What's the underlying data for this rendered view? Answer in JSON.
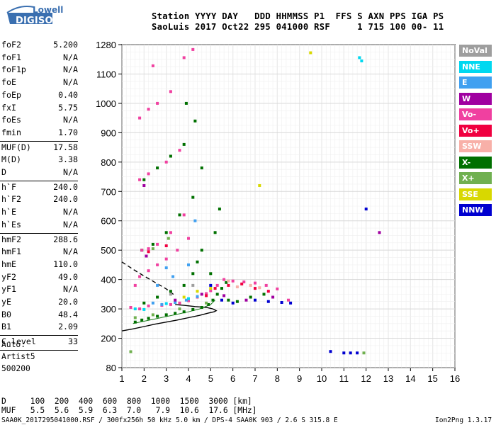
{
  "logo": {
    "line1": "Lowell",
    "line2": "DIGISONDE"
  },
  "header": {
    "line1": "Station YYYY DAY   DDD HHMMSS P1  FFS S AXN PPS IGA PS",
    "line2": "SaoLuis 2017 Oct22 295 041000 RSF     1 715 100 00- 11"
  },
  "params": [
    {
      "label": "foF2",
      "value": "5.200"
    },
    {
      "label": "foF1",
      "value": "N/A"
    },
    {
      "label": "foF1p",
      "value": "N/A"
    },
    {
      "label": "foE",
      "value": "N/A"
    },
    {
      "label": "foEp",
      "value": "0.40"
    },
    {
      "label": "fxI",
      "value": "5.75"
    },
    {
      "label": "foEs",
      "value": "N/A"
    },
    {
      "label": "fmin",
      "value": "1.70"
    },
    {
      "label": "MUF(D)",
      "value": "17.58"
    },
    {
      "label": "M(D)",
      "value": "3.38"
    },
    {
      "label": "D",
      "value": "N/A"
    },
    {
      "label": "h`F",
      "value": "240.0"
    },
    {
      "label": "h`F2",
      "value": "240.0"
    },
    {
      "label": "h`E",
      "value": "N/A"
    },
    {
      "label": "h`Es",
      "value": "N/A"
    },
    {
      "label": "hmF2",
      "value": "288.6"
    },
    {
      "label": "hmF1",
      "value": "N/A"
    },
    {
      "label": "hmE",
      "value": "110.0"
    },
    {
      "label": "yF2",
      "value": "49.0"
    },
    {
      "label": "yF1",
      "value": "N/A"
    },
    {
      "label": "yE",
      "value": "20.0"
    },
    {
      "label": "B0",
      "value": "48.4"
    },
    {
      "label": "B1",
      "value": "2.09"
    },
    {
      "label": "C-level",
      "value": "33"
    }
  ],
  "autoscaling": {
    "line1": "Auto:",
    "line2": "Artist5",
    "line3": "500200"
  },
  "legend": [
    {
      "label": "NoVal",
      "color": "#9e9e9e"
    },
    {
      "label": "NNE",
      "color": "#00d8f0"
    },
    {
      "label": "E",
      "color": "#40a0f0"
    },
    {
      "label": "W",
      "color": "#a000a0"
    },
    {
      "label": "Vo-",
      "color": "#f040a0"
    },
    {
      "label": "Vo+",
      "color": "#f00040"
    },
    {
      "label": "SSW",
      "color": "#f8b0a8"
    },
    {
      "label": "X-",
      "color": "#007000"
    },
    {
      "label": "X+",
      "color": "#70b050"
    },
    {
      "label": "SSE",
      "color": "#d8d800"
    },
    {
      "label": "NNW",
      "color": "#0000d0"
    }
  ],
  "muf_table": {
    "d_line": "D     100  200  400  600  800  1000  1500  3000 [km]",
    "muf_line": "MUF   5.5  5.6  5.9  6.3  7.0   7.9  10.6  17.6 [MHz]"
  },
  "footer": {
    "left": "SAA0K_2017295041000.RSF / 300fx256h 50 kHz 5.0 km / DPS-4 SAA0K 903 / 2.6 S 315.8 E",
    "right": "Ion2Png 1.3.17"
  },
  "chart_data": {
    "type": "scatter",
    "xlabel": "",
    "ylabel": "",
    "x_ticks": [
      1,
      2,
      3,
      4,
      5,
      6,
      7,
      8,
      9,
      10,
      11,
      12,
      13,
      14,
      15,
      16
    ],
    "y_ticks": [
      80,
      200,
      300,
      400,
      500,
      600,
      700,
      800,
      900,
      1000,
      1100,
      1280
    ],
    "xlim": [
      1,
      16
    ],
    "ylim": [
      80,
      1280
    ],
    "grid": true,
    "series": [
      {
        "name": "X-",
        "color": "#007000",
        "points": [
          [
            1.6,
            255
          ],
          [
            1.9,
            262
          ],
          [
            2.2,
            268
          ],
          [
            2.6,
            275
          ],
          [
            3.0,
            280
          ],
          [
            3.4,
            285
          ],
          [
            3.8,
            290
          ],
          [
            4.2,
            298
          ],
          [
            4.6,
            305
          ],
          [
            4.9,
            315
          ],
          [
            5.1,
            330
          ],
          [
            5.3,
            350
          ],
          [
            5.5,
            370
          ],
          [
            5.7,
            390
          ],
          [
            2.0,
            320
          ],
          [
            2.6,
            340
          ],
          [
            3.2,
            360
          ],
          [
            3.8,
            380
          ],
          [
            4.2,
            420
          ],
          [
            4.4,
            460
          ],
          [
            4.6,
            500
          ],
          [
            5.2,
            560
          ],
          [
            5.4,
            640
          ],
          [
            1.9,
            500
          ],
          [
            2.4,
            520
          ],
          [
            3.0,
            560
          ],
          [
            3.6,
            620
          ],
          [
            4.2,
            680
          ],
          [
            4.6,
            780
          ],
          [
            2.0,
            740
          ],
          [
            2.6,
            780
          ],
          [
            3.2,
            820
          ],
          [
            3.8,
            860
          ],
          [
            4.3,
            940
          ],
          [
            3.9,
            1000
          ],
          [
            5.0,
            420
          ],
          [
            5.8,
            330
          ],
          [
            6.2,
            325
          ],
          [
            6.8,
            340
          ],
          [
            7.4,
            350
          ]
        ]
      },
      {
        "name": "Vo-",
        "color": "#f040a0",
        "points": [
          [
            1.4,
            305
          ],
          [
            1.8,
            300
          ],
          [
            2.2,
            310
          ],
          [
            2.8,
            312
          ],
          [
            3.2,
            315
          ],
          [
            3.6,
            320
          ],
          [
            4.0,
            328
          ],
          [
            4.4,
            340
          ],
          [
            4.8,
            352
          ],
          [
            5.0,
            362
          ],
          [
            5.3,
            380
          ],
          [
            5.6,
            400
          ],
          [
            6.0,
            395
          ],
          [
            6.5,
            392
          ],
          [
            7.0,
            388
          ],
          [
            7.5,
            380
          ],
          [
            8.0,
            368
          ],
          [
            8.5,
            330
          ],
          [
            1.8,
            410
          ],
          [
            2.2,
            430
          ],
          [
            2.6,
            450
          ],
          [
            3.0,
            470
          ],
          [
            3.5,
            500
          ],
          [
            4.0,
            540
          ],
          [
            1.6,
            380
          ],
          [
            1.9,
            500
          ],
          [
            2.2,
            505
          ],
          [
            2.6,
            520
          ],
          [
            3.2,
            560
          ],
          [
            3.8,
            620
          ],
          [
            1.8,
            740
          ],
          [
            2.2,
            760
          ],
          [
            3.0,
            800
          ],
          [
            3.6,
            840
          ],
          [
            1.8,
            950
          ],
          [
            2.2,
            980
          ],
          [
            2.6,
            1000
          ],
          [
            3.2,
            1040
          ],
          [
            2.4,
            1150
          ],
          [
            3.8,
            1200
          ],
          [
            4.2,
            1250
          ]
        ]
      },
      {
        "name": "Vo+",
        "color": "#f00040",
        "points": [
          [
            4.8,
            345
          ],
          [
            5.2,
            370
          ],
          [
            5.8,
            380
          ],
          [
            6.4,
            385
          ],
          [
            7.0,
            370
          ],
          [
            7.6,
            360
          ],
          [
            2.2,
            495
          ],
          [
            3.0,
            515
          ]
        ]
      },
      {
        "name": "NNW",
        "color": "#0000d0",
        "points": [
          [
            5.5,
            330
          ],
          [
            6.0,
            320
          ],
          [
            7.0,
            330
          ],
          [
            7.6,
            325
          ],
          [
            8.2,
            322
          ],
          [
            8.6,
            320
          ],
          [
            11.0,
            140
          ],
          [
            11.3,
            140
          ],
          [
            11.6,
            140
          ],
          [
            12.0,
            640
          ],
          [
            10.4,
            146
          ],
          [
            5.0,
            380
          ]
        ]
      },
      {
        "name": "E",
        "color": "#40a0f0",
        "points": [
          [
            2.4,
            320
          ],
          [
            2.8,
            315
          ],
          [
            3.4,
            322
          ],
          [
            3.9,
            330
          ],
          [
            4.4,
            342
          ],
          [
            2.6,
            380
          ],
          [
            3.3,
            410
          ],
          [
            4.0,
            450
          ],
          [
            3.0,
            440
          ],
          [
            4.3,
            600
          ]
        ]
      },
      {
        "name": "NNE",
        "color": "#00d8f0",
        "points": [
          [
            1.6,
            300
          ],
          [
            2.0,
            298
          ],
          [
            3.0,
            318
          ],
          [
            4.0,
            335
          ],
          [
            11.7,
            1200
          ],
          [
            11.8,
            1180
          ]
        ]
      },
      {
        "name": "W",
        "color": "#a000a0",
        "points": [
          [
            3.4,
            330
          ],
          [
            4.6,
            350
          ],
          [
            5.6,
            345
          ],
          [
            6.6,
            330
          ],
          [
            7.8,
            340
          ],
          [
            2.1,
            480
          ],
          [
            2.0,
            720
          ],
          [
            12.6,
            560
          ]
        ]
      },
      {
        "name": "X+",
        "color": "#70b050",
        "points": [
          [
            1.6,
            270
          ],
          [
            2.4,
            280
          ],
          [
            3.6,
            300
          ],
          [
            4.8,
            320
          ],
          [
            1.4,
            145
          ],
          [
            11.9,
            140
          ],
          [
            2.4,
            505
          ],
          [
            3.1,
            540
          ]
        ]
      },
      {
        "name": "SSE",
        "color": "#d8d800",
        "points": [
          [
            3.8,
            340
          ],
          [
            4.4,
            360
          ],
          [
            5.0,
            370
          ],
          [
            9.5,
            1230
          ],
          [
            7.2,
            720
          ]
        ]
      },
      {
        "name": "SSW",
        "color": "#f8b0a8",
        "points": [
          [
            6.2,
            375
          ],
          [
            6.8,
            380
          ],
          [
            7.2,
            372
          ],
          [
            5.8,
            395
          ]
        ]
      },
      {
        "name": "NoVal",
        "color": "#9e9e9e",
        "points": [
          [
            3.2,
            350
          ],
          [
            4.2,
            380
          ]
        ]
      }
    ],
    "lines": [
      {
        "name": "profile",
        "style": "solid",
        "points": [
          [
            1.0,
            225
          ],
          [
            1.5,
            232
          ],
          [
            2.0,
            240
          ],
          [
            2.5,
            248
          ],
          [
            3.0,
            255
          ],
          [
            3.5,
            262
          ],
          [
            4.0,
            270
          ],
          [
            4.5,
            278
          ],
          [
            4.9,
            286
          ],
          [
            5.15,
            290
          ],
          [
            5.25,
            294
          ],
          [
            5.1,
            300
          ],
          [
            4.8,
            305
          ],
          [
            4.3,
            308
          ],
          [
            3.8,
            312
          ],
          [
            3.4,
            315
          ]
        ]
      },
      {
        "name": "valley",
        "style": "dashed",
        "points": [
          [
            1.0,
            460
          ],
          [
            1.5,
            435
          ],
          [
            2.0,
            412
          ],
          [
            2.5,
            390
          ],
          [
            3.0,
            368
          ],
          [
            3.4,
            345
          ]
        ]
      },
      {
        "name": "trace",
        "style": "thin",
        "points": [
          [
            1.5,
            250
          ],
          [
            2.0,
            258
          ],
          [
            2.5,
            266
          ],
          [
            3.0,
            274
          ],
          [
            3.5,
            282
          ],
          [
            4.0,
            290
          ],
          [
            4.5,
            300
          ],
          [
            5.0,
            315
          ],
          [
            5.2,
            330
          ]
        ]
      }
    ]
  }
}
